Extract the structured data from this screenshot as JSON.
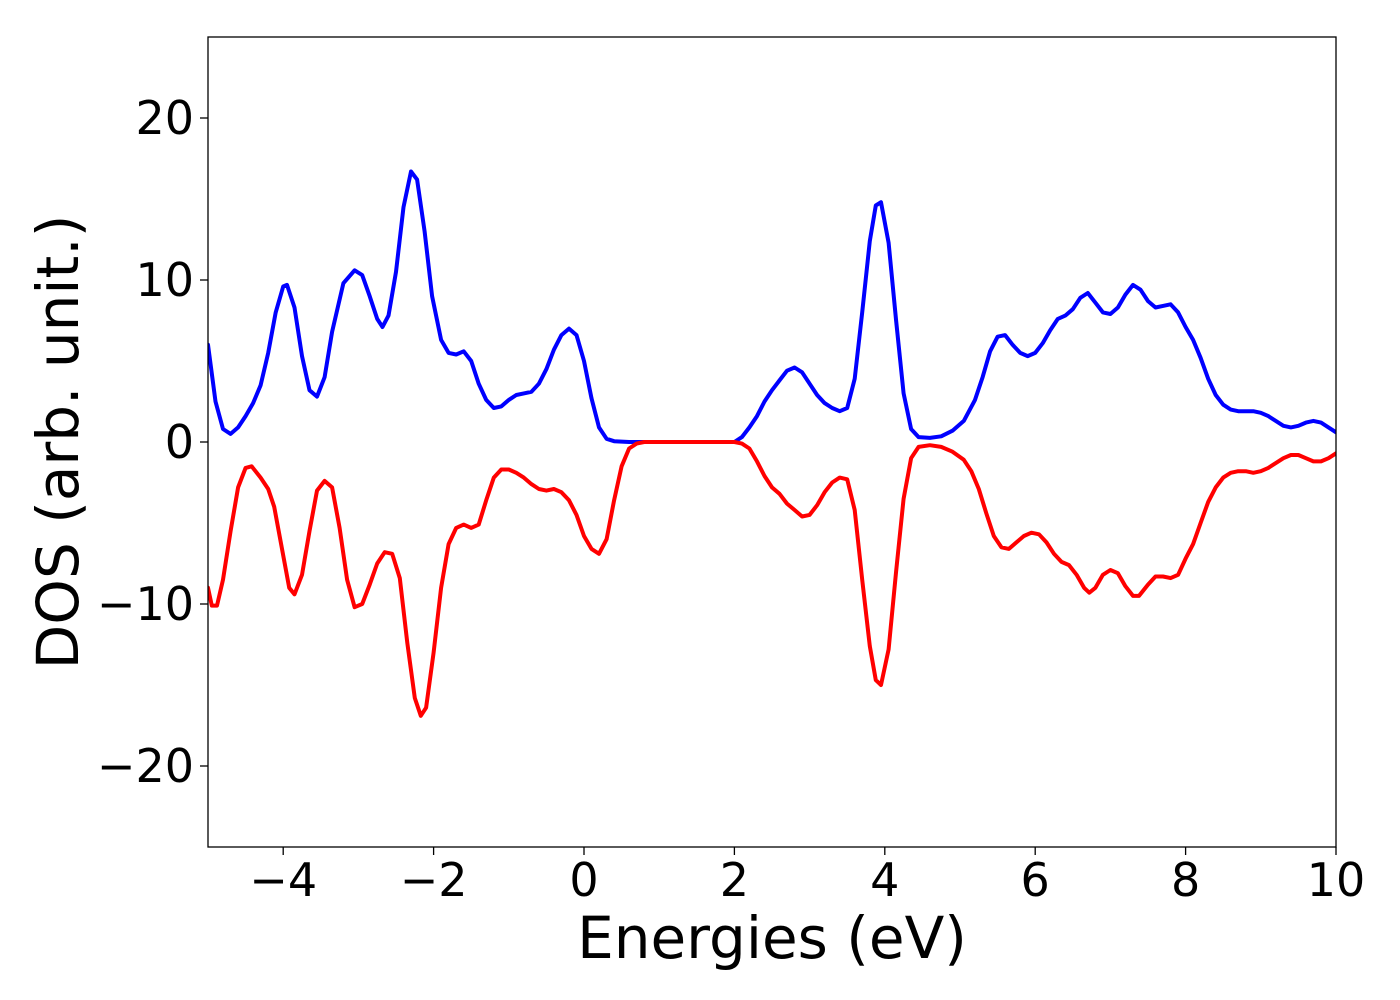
{
  "chart_data": {
    "type": "line",
    "title": "",
    "xlabel": "Energies (eV)",
    "ylabel": "DOS (arb. unit.)",
    "xlim": [
      -5,
      10
    ],
    "ylim": [
      -25,
      25
    ],
    "x_ticks": [
      -4,
      -2,
      0,
      2,
      4,
      6,
      8,
      10
    ],
    "x_tick_labels": [
      "−4",
      "−2",
      "0",
      "2",
      "4",
      "6",
      "8",
      "10"
    ],
    "y_ticks": [
      -20,
      -10,
      0,
      10,
      20
    ],
    "y_tick_labels": [
      "−20",
      "−10",
      "0",
      "10",
      "20"
    ],
    "grid": false,
    "legend": "none",
    "series": [
      {
        "color": "#0000ff",
        "points": [
          [
            -5.0,
            6.0
          ],
          [
            -4.9,
            2.5
          ],
          [
            -4.8,
            0.8
          ],
          [
            -4.7,
            0.5
          ],
          [
            -4.6,
            0.9
          ],
          [
            -4.5,
            1.6
          ],
          [
            -4.4,
            2.4
          ],
          [
            -4.3,
            3.5
          ],
          [
            -4.2,
            5.5
          ],
          [
            -4.1,
            8.0
          ],
          [
            -4.0,
            9.6
          ],
          [
            -3.95,
            9.7
          ],
          [
            -3.85,
            8.3
          ],
          [
            -3.75,
            5.3
          ],
          [
            -3.65,
            3.2
          ],
          [
            -3.55,
            2.8
          ],
          [
            -3.45,
            4.0
          ],
          [
            -3.35,
            6.8
          ],
          [
            -3.2,
            9.8
          ],
          [
            -3.05,
            10.6
          ],
          [
            -2.95,
            10.3
          ],
          [
            -2.85,
            9.0
          ],
          [
            -2.75,
            7.6
          ],
          [
            -2.68,
            7.1
          ],
          [
            -2.6,
            7.8
          ],
          [
            -2.5,
            10.5
          ],
          [
            -2.4,
            14.5
          ],
          [
            -2.3,
            16.7
          ],
          [
            -2.22,
            16.2
          ],
          [
            -2.12,
            13.0
          ],
          [
            -2.02,
            9.0
          ],
          [
            -1.9,
            6.3
          ],
          [
            -1.8,
            5.5
          ],
          [
            -1.7,
            5.4
          ],
          [
            -1.6,
            5.6
          ],
          [
            -1.5,
            5.0
          ],
          [
            -1.4,
            3.6
          ],
          [
            -1.3,
            2.6
          ],
          [
            -1.2,
            2.1
          ],
          [
            -1.1,
            2.2
          ],
          [
            -1.0,
            2.6
          ],
          [
            -0.9,
            2.9
          ],
          [
            -0.8,
            3.0
          ],
          [
            -0.7,
            3.1
          ],
          [
            -0.6,
            3.6
          ],
          [
            -0.5,
            4.5
          ],
          [
            -0.4,
            5.7
          ],
          [
            -0.3,
            6.6
          ],
          [
            -0.2,
            7.0
          ],
          [
            -0.1,
            6.6
          ],
          [
            0.0,
            5.0
          ],
          [
            0.1,
            2.7
          ],
          [
            0.2,
            0.9
          ],
          [
            0.3,
            0.2
          ],
          [
            0.4,
            0.05
          ],
          [
            0.6,
            0.0
          ],
          [
            1.0,
            0.0
          ],
          [
            1.5,
            0.0
          ],
          [
            2.0,
            0.0
          ],
          [
            2.1,
            0.3
          ],
          [
            2.2,
            0.9
          ],
          [
            2.3,
            1.6
          ],
          [
            2.4,
            2.5
          ],
          [
            2.5,
            3.2
          ],
          [
            2.6,
            3.8
          ],
          [
            2.7,
            4.4
          ],
          [
            2.8,
            4.6
          ],
          [
            2.9,
            4.3
          ],
          [
            3.0,
            3.6
          ],
          [
            3.1,
            2.9
          ],
          [
            3.2,
            2.4
          ],
          [
            3.3,
            2.1
          ],
          [
            3.4,
            1.9
          ],
          [
            3.5,
            2.1
          ],
          [
            3.6,
            3.9
          ],
          [
            3.7,
            8.0
          ],
          [
            3.8,
            12.4
          ],
          [
            3.88,
            14.6
          ],
          [
            3.95,
            14.8
          ],
          [
            4.05,
            12.3
          ],
          [
            4.15,
            7.5
          ],
          [
            4.25,
            3.0
          ],
          [
            4.35,
            0.8
          ],
          [
            4.45,
            0.3
          ],
          [
            4.6,
            0.25
          ],
          [
            4.75,
            0.35
          ],
          [
            4.9,
            0.7
          ],
          [
            5.05,
            1.3
          ],
          [
            5.2,
            2.6
          ],
          [
            5.3,
            4.0
          ],
          [
            5.4,
            5.6
          ],
          [
            5.5,
            6.5
          ],
          [
            5.6,
            6.6
          ],
          [
            5.7,
            6.0
          ],
          [
            5.8,
            5.5
          ],
          [
            5.9,
            5.3
          ],
          [
            6.0,
            5.5
          ],
          [
            6.1,
            6.1
          ],
          [
            6.2,
            6.9
          ],
          [
            6.3,
            7.6
          ],
          [
            6.4,
            7.8
          ],
          [
            6.5,
            8.2
          ],
          [
            6.6,
            8.9
          ],
          [
            6.7,
            9.2
          ],
          [
            6.8,
            8.6
          ],
          [
            6.9,
            8.0
          ],
          [
            7.0,
            7.9
          ],
          [
            7.1,
            8.3
          ],
          [
            7.2,
            9.1
          ],
          [
            7.3,
            9.7
          ],
          [
            7.4,
            9.4
          ],
          [
            7.5,
            8.7
          ],
          [
            7.6,
            8.3
          ],
          [
            7.7,
            8.4
          ],
          [
            7.8,
            8.5
          ],
          [
            7.9,
            8.0
          ],
          [
            8.0,
            7.1
          ],
          [
            8.1,
            6.3
          ],
          [
            8.2,
            5.2
          ],
          [
            8.3,
            3.9
          ],
          [
            8.4,
            2.9
          ],
          [
            8.5,
            2.3
          ],
          [
            8.6,
            2.0
          ],
          [
            8.7,
            1.9
          ],
          [
            8.8,
            1.9
          ],
          [
            8.9,
            1.9
          ],
          [
            9.0,
            1.8
          ],
          [
            9.1,
            1.6
          ],
          [
            9.2,
            1.3
          ],
          [
            9.3,
            1.0
          ],
          [
            9.4,
            0.9
          ],
          [
            9.5,
            1.0
          ],
          [
            9.6,
            1.2
          ],
          [
            9.7,
            1.3
          ],
          [
            9.8,
            1.2
          ],
          [
            9.9,
            0.9
          ],
          [
            10.0,
            0.6
          ]
        ]
      },
      {
        "color": "#ff0000",
        "points": [
          [
            -5.0,
            -9.0
          ],
          [
            -4.95,
            -10.1
          ],
          [
            -4.88,
            -10.1
          ],
          [
            -4.8,
            -8.5
          ],
          [
            -4.7,
            -5.5
          ],
          [
            -4.6,
            -2.8
          ],
          [
            -4.5,
            -1.6
          ],
          [
            -4.42,
            -1.5
          ],
          [
            -4.3,
            -2.2
          ],
          [
            -4.2,
            -2.9
          ],
          [
            -4.12,
            -4.0
          ],
          [
            -4.02,
            -6.5
          ],
          [
            -3.92,
            -9.0
          ],
          [
            -3.85,
            -9.4
          ],
          [
            -3.75,
            -8.2
          ],
          [
            -3.65,
            -5.5
          ],
          [
            -3.55,
            -3.0
          ],
          [
            -3.45,
            -2.4
          ],
          [
            -3.35,
            -2.8
          ],
          [
            -3.25,
            -5.3
          ],
          [
            -3.15,
            -8.5
          ],
          [
            -3.05,
            -10.2
          ],
          [
            -2.95,
            -10.0
          ],
          [
            -2.85,
            -8.8
          ],
          [
            -2.75,
            -7.5
          ],
          [
            -2.65,
            -6.8
          ],
          [
            -2.55,
            -6.9
          ],
          [
            -2.45,
            -8.4
          ],
          [
            -2.35,
            -12.4
          ],
          [
            -2.25,
            -15.8
          ],
          [
            -2.17,
            -16.9
          ],
          [
            -2.1,
            -16.4
          ],
          [
            -2.0,
            -13.0
          ],
          [
            -1.9,
            -9.0
          ],
          [
            -1.8,
            -6.3
          ],
          [
            -1.7,
            -5.3
          ],
          [
            -1.6,
            -5.1
          ],
          [
            -1.5,
            -5.3
          ],
          [
            -1.4,
            -5.1
          ],
          [
            -1.3,
            -3.6
          ],
          [
            -1.2,
            -2.2
          ],
          [
            -1.1,
            -1.7
          ],
          [
            -1.0,
            -1.7
          ],
          [
            -0.9,
            -1.9
          ],
          [
            -0.8,
            -2.2
          ],
          [
            -0.7,
            -2.6
          ],
          [
            -0.6,
            -2.9
          ],
          [
            -0.5,
            -3.0
          ],
          [
            -0.4,
            -2.9
          ],
          [
            -0.3,
            -3.1
          ],
          [
            -0.2,
            -3.6
          ],
          [
            -0.1,
            -4.5
          ],
          [
            0.0,
            -5.8
          ],
          [
            0.1,
            -6.6
          ],
          [
            0.2,
            -6.9
          ],
          [
            0.3,
            -6.0
          ],
          [
            0.4,
            -3.6
          ],
          [
            0.5,
            -1.5
          ],
          [
            0.6,
            -0.4
          ],
          [
            0.7,
            -0.1
          ],
          [
            0.8,
            0.0
          ],
          [
            1.0,
            0.0
          ],
          [
            1.5,
            0.0
          ],
          [
            2.0,
            0.0
          ],
          [
            2.1,
            -0.1
          ],
          [
            2.2,
            -0.4
          ],
          [
            2.3,
            -1.2
          ],
          [
            2.4,
            -2.1
          ],
          [
            2.5,
            -2.8
          ],
          [
            2.6,
            -3.2
          ],
          [
            2.7,
            -3.8
          ],
          [
            2.8,
            -4.2
          ],
          [
            2.9,
            -4.6
          ],
          [
            3.0,
            -4.5
          ],
          [
            3.1,
            -3.9
          ],
          [
            3.2,
            -3.1
          ],
          [
            3.3,
            -2.5
          ],
          [
            3.4,
            -2.2
          ],
          [
            3.5,
            -2.3
          ],
          [
            3.6,
            -4.2
          ],
          [
            3.7,
            -8.5
          ],
          [
            3.8,
            -12.6
          ],
          [
            3.88,
            -14.7
          ],
          [
            3.95,
            -15.0
          ],
          [
            4.05,
            -12.8
          ],
          [
            4.15,
            -8.0
          ],
          [
            4.25,
            -3.5
          ],
          [
            4.35,
            -1.0
          ],
          [
            4.45,
            -0.3
          ],
          [
            4.6,
            -0.2
          ],
          [
            4.75,
            -0.3
          ],
          [
            4.9,
            -0.6
          ],
          [
            5.05,
            -1.1
          ],
          [
            5.15,
            -1.8
          ],
          [
            5.25,
            -2.9
          ],
          [
            5.35,
            -4.4
          ],
          [
            5.45,
            -5.8
          ],
          [
            5.55,
            -6.5
          ],
          [
            5.65,
            -6.6
          ],
          [
            5.75,
            -6.2
          ],
          [
            5.85,
            -5.8
          ],
          [
            5.95,
            -5.6
          ],
          [
            6.05,
            -5.7
          ],
          [
            6.15,
            -6.2
          ],
          [
            6.25,
            -6.9
          ],
          [
            6.35,
            -7.4
          ],
          [
            6.45,
            -7.6
          ],
          [
            6.55,
            -8.2
          ],
          [
            6.65,
            -9.0
          ],
          [
            6.72,
            -9.3
          ],
          [
            6.8,
            -9.0
          ],
          [
            6.9,
            -8.2
          ],
          [
            7.0,
            -7.9
          ],
          [
            7.1,
            -8.1
          ],
          [
            7.2,
            -8.9
          ],
          [
            7.3,
            -9.5
          ],
          [
            7.38,
            -9.5
          ],
          [
            7.5,
            -8.8
          ],
          [
            7.6,
            -8.3
          ],
          [
            7.7,
            -8.3
          ],
          [
            7.8,
            -8.4
          ],
          [
            7.9,
            -8.2
          ],
          [
            8.0,
            -7.2
          ],
          [
            8.1,
            -6.3
          ],
          [
            8.2,
            -5.0
          ],
          [
            8.3,
            -3.7
          ],
          [
            8.4,
            -2.8
          ],
          [
            8.5,
            -2.2
          ],
          [
            8.6,
            -1.9
          ],
          [
            8.7,
            -1.8
          ],
          [
            8.8,
            -1.8
          ],
          [
            8.9,
            -1.9
          ],
          [
            9.0,
            -1.8
          ],
          [
            9.1,
            -1.6
          ],
          [
            9.2,
            -1.3
          ],
          [
            9.3,
            -1.0
          ],
          [
            9.4,
            -0.8
          ],
          [
            9.5,
            -0.8
          ],
          [
            9.6,
            -1.0
          ],
          [
            9.7,
            -1.2
          ],
          [
            9.8,
            -1.2
          ],
          [
            9.9,
            -1.0
          ],
          [
            10.0,
            -0.7
          ]
        ]
      }
    ]
  }
}
